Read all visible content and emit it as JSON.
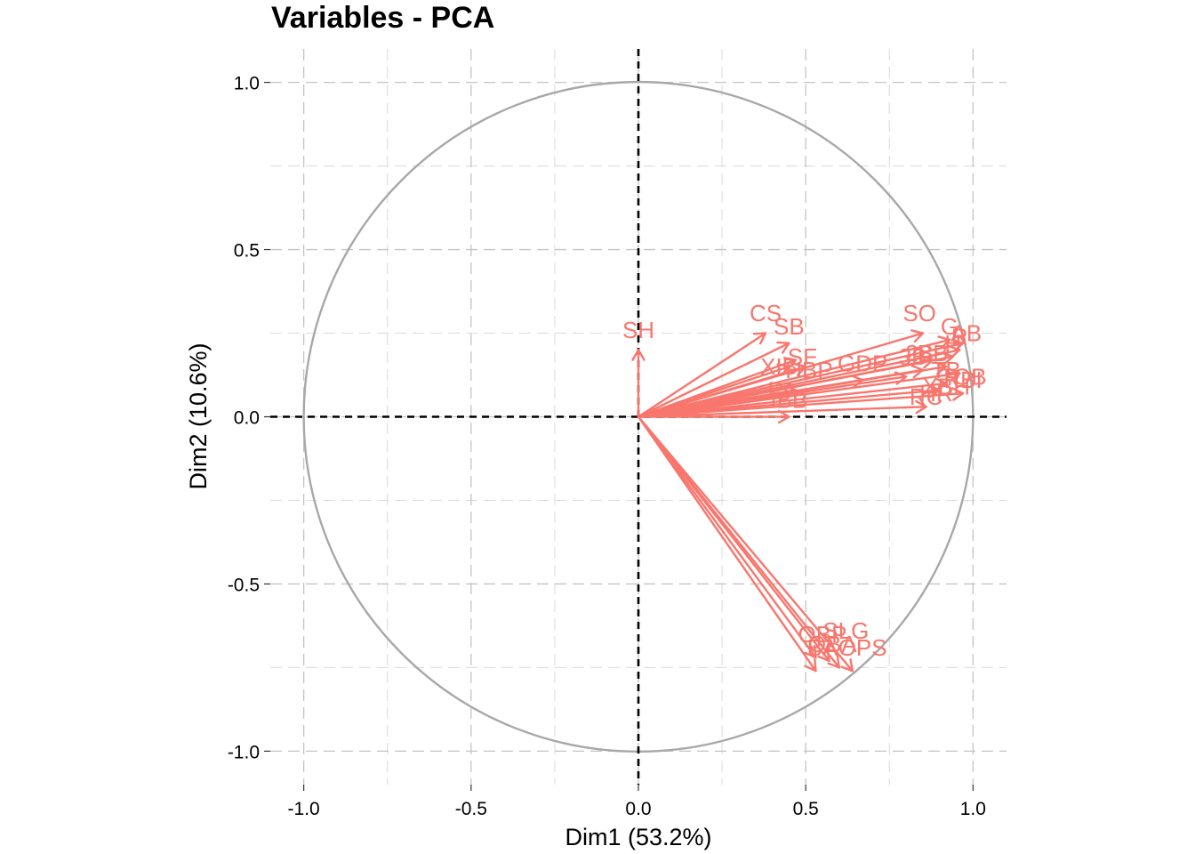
{
  "chart_data": {
    "type": "scatter",
    "title": "Variables - PCA",
    "xlabel": "Dim1 (53.2%)",
    "ylabel": "Dim2 (10.6%)",
    "xlim": [
      -1.1,
      1.1
    ],
    "ylim": [
      -1.1,
      1.1
    ],
    "x_ticks": [
      -1.0,
      -0.5,
      0.0,
      0.5,
      1.0
    ],
    "y_ticks": [
      -1.0,
      -0.5,
      0.0,
      0.5,
      1.0
    ],
    "x_tick_labels": [
      "-1.0",
      "-0.5",
      "0.0",
      "0.5",
      "1.0"
    ],
    "y_tick_labels": [
      "-1.0",
      "-0.5",
      "0.0",
      "0.5",
      "1.0"
    ],
    "grid": true,
    "correlation_circle": true,
    "colors": {
      "variables": "#F8766D",
      "circle": "#a8a8a8",
      "zero_lines": "#000000"
    },
    "variables": [
      {
        "name": "SH",
        "x": 0.0,
        "y": 0.2
      },
      {
        "name": "CS",
        "x": 0.38,
        "y": 0.25
      },
      {
        "name": "SB",
        "x": 0.45,
        "y": 0.22
      },
      {
        "name": "SF",
        "x": 0.47,
        "y": 0.17
      },
      {
        "name": "XIB",
        "x": 0.45,
        "y": 0.15
      },
      {
        "name": "HBP",
        "x": 0.5,
        "y": 0.15
      },
      {
        "name": "GDP",
        "x": 0.67,
        "y": 0.11
      },
      {
        "name": "IBB",
        "x": 0.47,
        "y": 0.08
      },
      {
        "name": "PA",
        "x": 0.45,
        "y": 0.0
      },
      {
        "name": "SO",
        "x": 0.85,
        "y": 0.25
      },
      {
        "name": "G",
        "x": 0.93,
        "y": 0.23
      },
      {
        "name": "AB",
        "x": 0.97,
        "y": 0.22
      },
      {
        "name": "R",
        "x": 0.96,
        "y": 0.2
      },
      {
        "name": "H",
        "x": 0.94,
        "y": 0.18
      },
      {
        "name": "TB",
        "x": 0.92,
        "y": 0.15
      },
      {
        "name": "RBI",
        "x": 0.96,
        "y": 0.13
      },
      {
        "name": "BB",
        "x": 0.88,
        "y": 0.17
      },
      {
        "name": "2B",
        "x": 0.85,
        "y": 0.14
      },
      {
        "name": "3B",
        "x": 0.8,
        "y": 0.12
      },
      {
        "name": "HR",
        "x": 0.9,
        "y": 0.08
      },
      {
        "name": "XBH",
        "x": 0.92,
        "y": 0.1
      },
      {
        "name": "TOB",
        "x": 0.97,
        "y": 0.07
      },
      {
        "name": "RC",
        "x": 0.86,
        "y": 0.03
      },
      {
        "name": "OBP",
        "x": 0.53,
        "y": -0.76
      },
      {
        "name": "SLG",
        "x": 0.6,
        "y": -0.75
      },
      {
        "name": "BA",
        "x": 0.53,
        "y": -0.72
      },
      {
        "name": "OPS",
        "x": 0.64,
        "y": -0.76
      },
      {
        "name": "OBA",
        "x": 0.57,
        "y": -0.73
      }
    ],
    "label_positions": {
      "SH": [
        0.0,
        0.26
      ],
      "CS": [
        0.38,
        0.31
      ],
      "SB": [
        0.45,
        0.27
      ],
      "SF": [
        0.49,
        0.18
      ],
      "XIB": [
        0.42,
        0.15
      ],
      "HBP": [
        0.51,
        0.14
      ],
      "GDP": [
        0.67,
        0.16
      ],
      "IBB": [
        0.45,
        0.05
      ],
      "PA": [
        0.43,
        0.08
      ],
      "SO": [
        0.84,
        0.31
      ],
      "G": [
        0.93,
        0.27
      ],
      "AB": [
        0.98,
        0.25
      ],
      "R": [
        0.96,
        0.24
      ],
      "H": [
        0.94,
        0.22
      ],
      "TB": [
        0.92,
        0.14
      ],
      "RBI": [
        0.97,
        0.11
      ],
      "BB": [
        0.88,
        0.19
      ],
      "2B": [
        0.84,
        0.19
      ],
      "3B": [
        0.82,
        0.18
      ],
      "HR": [
        0.89,
        0.07
      ],
      "XBH": [
        0.92,
        0.09
      ],
      "TOB": [
        0.97,
        0.12
      ],
      "RC": [
        0.86,
        0.06
      ],
      "OBP": [
        0.55,
        -0.65
      ],
      "SLG": [
        0.62,
        -0.64
      ],
      "BA": [
        0.55,
        -0.69
      ],
      "OPS": [
        0.67,
        -0.69
      ],
      "OBA": [
        0.58,
        -0.68
      ]
    }
  }
}
